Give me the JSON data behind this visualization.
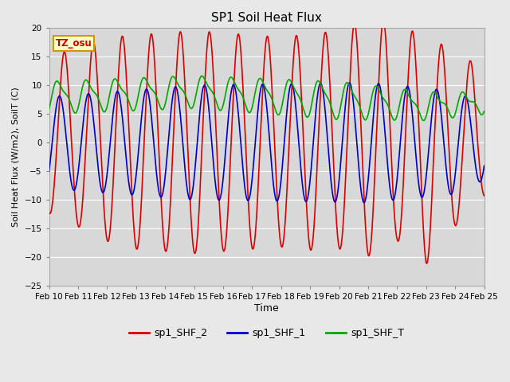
{
  "title": "SP1 Soil Heat Flux",
  "xlabel": "Time",
  "ylabel": "Soil Heat Flux (W/m2), SoilT (C)",
  "ylim": [
    -25,
    20
  ],
  "yticks": [
    -25,
    -20,
    -15,
    -10,
    -5,
    0,
    5,
    10,
    15,
    20
  ],
  "colors": {
    "sp1_SHF_2": "#dd0000",
    "sp1_SHF_1": "#0000cc",
    "sp1_SHF_T": "#00aa00"
  },
  "background_color": "#e8e8e8",
  "plot_bg_color": "#d8d8d8",
  "legend_label_2": "sp1_SHF_2",
  "legend_label_1": "sp1_SHF_1",
  "legend_label_T": "sp1_SHF_T",
  "tz_label": "TZ_osu",
  "line_width": 1.2,
  "grid_color": "#ffffff",
  "title_fontsize": 11,
  "tick_fontsize": 7.5,
  "ylabel_fontsize": 8,
  "xlabel_fontsize": 9
}
